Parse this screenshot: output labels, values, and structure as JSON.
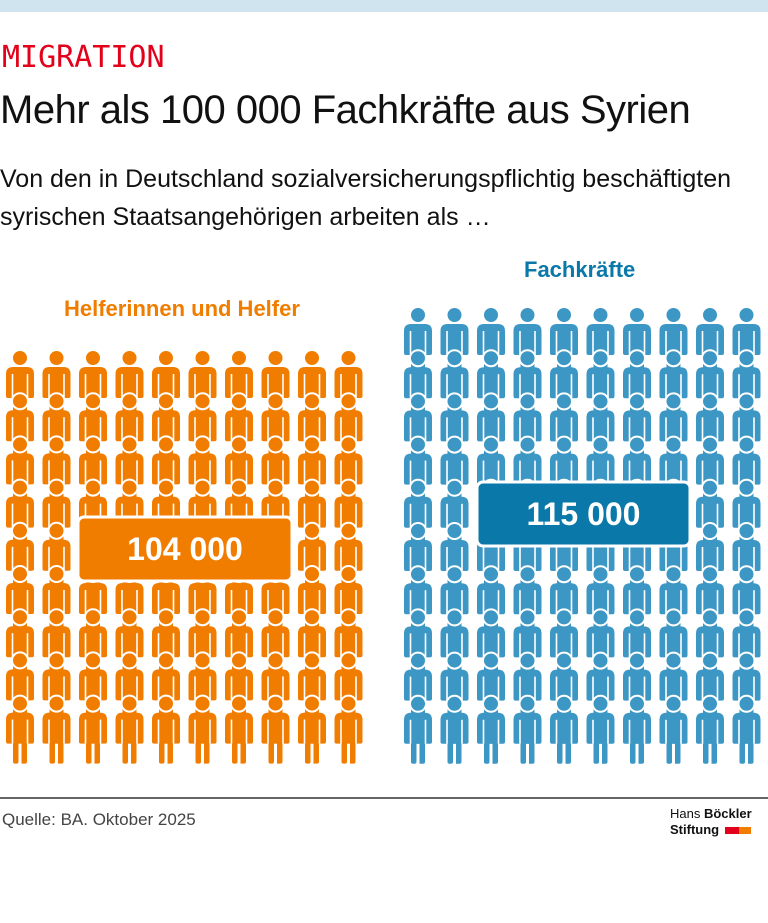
{
  "header": {
    "kicker": "MIGRATION",
    "title": "Mehr als 100 000 Fachkräfte aus Syrien",
    "subtitle": "Von den in Deutschland sozialversicherungspflichtig beschäftigten syrischen Staatsangehörigen arbeiten als …"
  },
  "chart_data": {
    "type": "pictogram",
    "series": [
      {
        "name": "Helferinnen und Helfer",
        "value": 104000,
        "value_label": "104 000",
        "icons": 90,
        "color": "#f07d00"
      },
      {
        "name": "Fachkräfte",
        "value": 115000,
        "value_label": "115 000",
        "icons": 100,
        "color": "#3d97c4"
      }
    ]
  },
  "footer": {
    "source": "Quelle: BA. Oktober 2025",
    "logo_line1_a": "Hans ",
    "logo_line1_b": "Böckler",
    "logo_line2": "Stiftung"
  },
  "colors": {
    "orange": "#f07d00",
    "blue": "#3d97c4",
    "label_blue": "#0a78a8",
    "kicker_red": "#e2001a"
  }
}
